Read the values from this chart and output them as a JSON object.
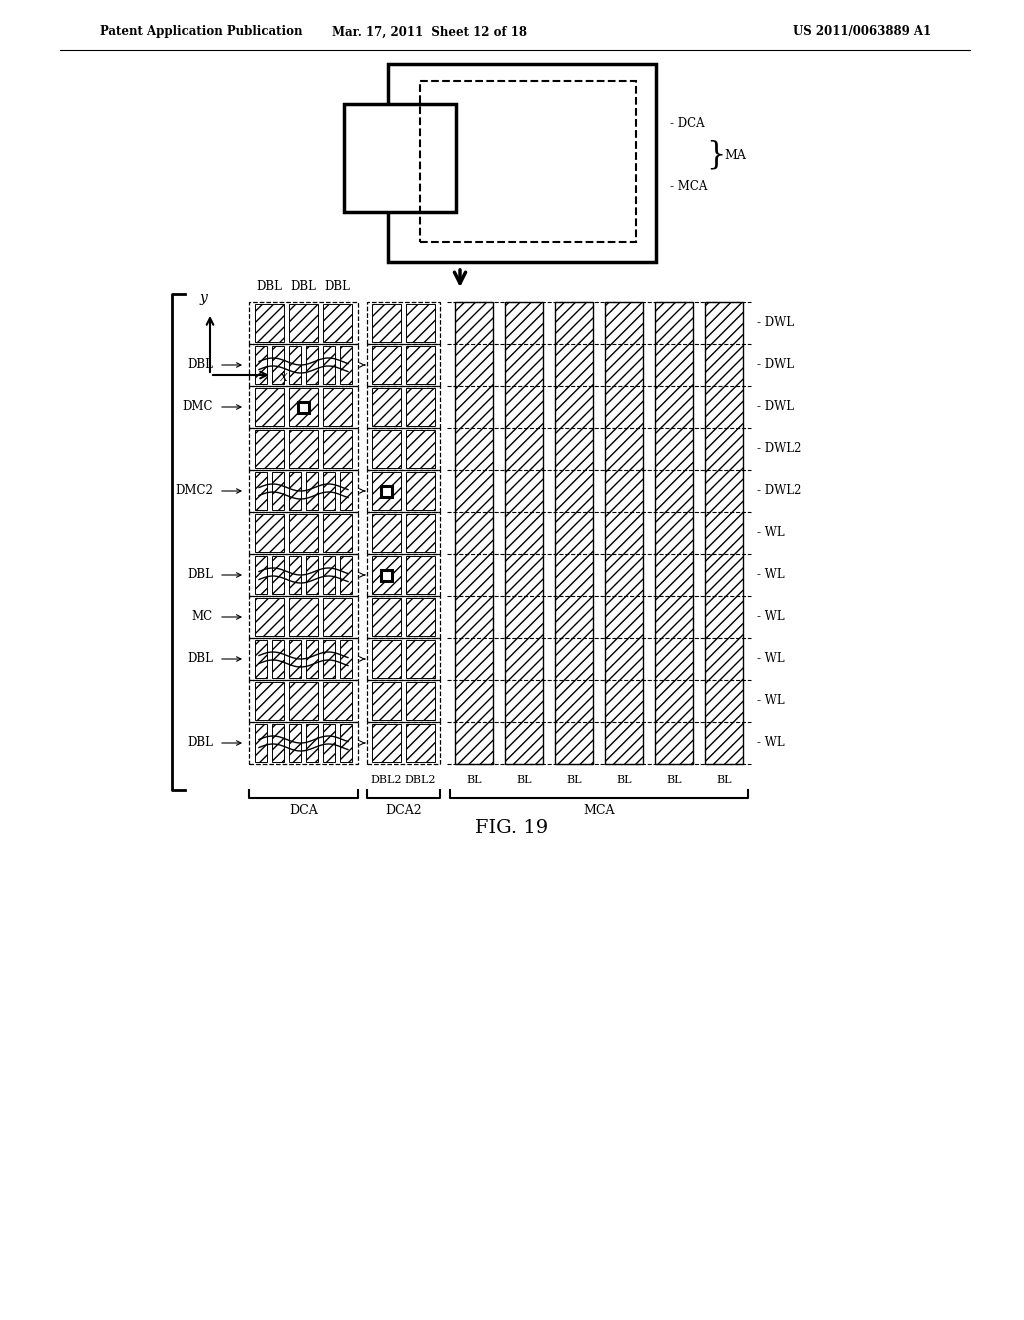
{
  "header_left": "Patent Application Publication",
  "header_mid": "Mar. 17, 2011  Sheet 12 of 18",
  "header_right": "US 2011/0063889 A1",
  "fig_label": "FIG. 19",
  "right_labels": [
    "DWL",
    "DWL",
    "DWL",
    "DWL2",
    "DWL2",
    "WL",
    "WL",
    "WL",
    "WL",
    "WL",
    "WL"
  ],
  "left_labels": [
    "",
    "DBL",
    "DMC",
    "",
    "DMC2",
    "",
    "DBL",
    "MC",
    "DBL",
    "",
    "DBL"
  ],
  "top_dca_labels": [
    "DBL",
    "DBL",
    "DBL"
  ],
  "bot_labels": [
    "DBL2",
    "DBL2",
    "BL",
    "BL",
    "BL",
    "BL",
    "BL",
    "BL"
  ],
  "bot_section_labels": [
    "DCA",
    "DCA2",
    "MCA"
  ],
  "bg": "#ffffff",
  "lc": "#000000"
}
